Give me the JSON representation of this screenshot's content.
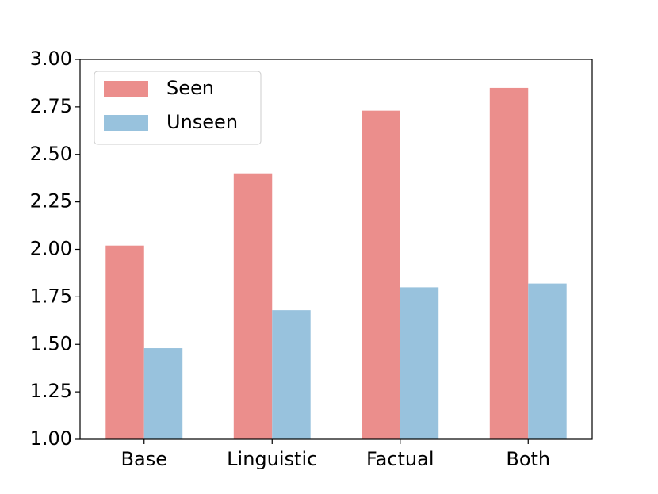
{
  "chart_data": {
    "type": "bar",
    "categories": [
      "Base",
      "Linguistic",
      "Factual",
      "Both"
    ],
    "series": [
      {
        "name": "Seen",
        "color": "#eb8e8c",
        "values": [
          2.02,
          2.4,
          2.73,
          2.85
        ]
      },
      {
        "name": "Unseen",
        "color": "#98c2dd",
        "values": [
          1.48,
          1.68,
          1.8,
          1.82
        ]
      }
    ],
    "ylim": [
      1.0,
      3.0
    ],
    "yticks": [
      {
        "value": 1.0,
        "label": "1.00"
      },
      {
        "value": 1.25,
        "label": "1.25"
      },
      {
        "value": 1.5,
        "label": "1.50"
      },
      {
        "value": 1.75,
        "label": "1.75"
      },
      {
        "value": 2.0,
        "label": "2.00"
      },
      {
        "value": 2.25,
        "label": "2.25"
      },
      {
        "value": 2.5,
        "label": "2.50"
      },
      {
        "value": 2.75,
        "label": "2.75"
      },
      {
        "value": 3.0,
        "label": "3.00"
      }
    ],
    "grid": false,
    "legend": "upper left"
  }
}
